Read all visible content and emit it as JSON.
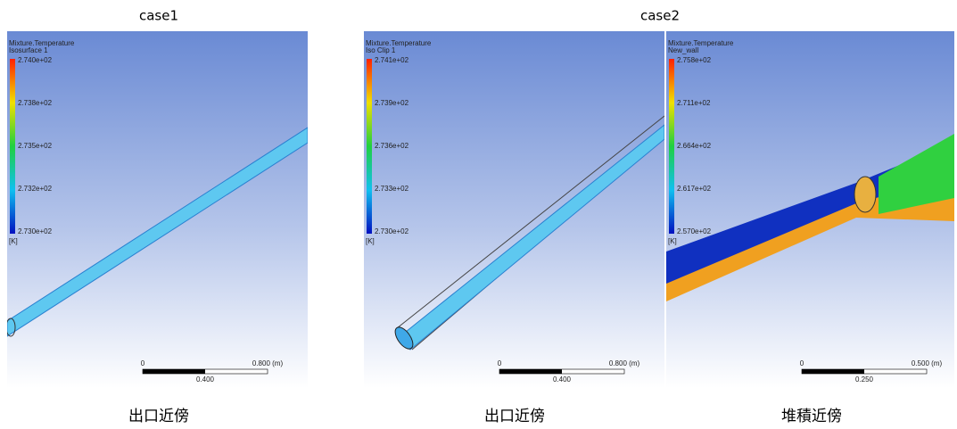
{
  "case_labels": [
    "case1",
    "case2"
  ],
  "captions": [
    "出口近傍",
    "出口近傍",
    "堆積近傍"
  ],
  "panels": [
    {
      "title": "Mixture.Temperature",
      "subtitle": "Isosurface 1",
      "legend_ticks": [
        "2.740e+02",
        "2.738e+02",
        "2.735e+02",
        "2.732e+02",
        "2.730e+02"
      ],
      "unit": "[K]",
      "scale_labels": [
        "0",
        "0.800 (m)",
        "0.400"
      ]
    },
    {
      "title": "Mixture.Temperature",
      "subtitle": "Iso Clip 1",
      "legend_ticks": [
        "2.741e+02",
        "2.739e+02",
        "2.736e+02",
        "2.733e+02",
        "2.730e+02"
      ],
      "unit": "[K]",
      "scale_labels": [
        "0",
        "0.800 (m)",
        "0.400"
      ]
    },
    {
      "title": "Mixture.Temperature",
      "subtitle": "New_wall",
      "legend_ticks": [
        "2.758e+02",
        "2.711e+02",
        "2.664e+02",
        "2.617e+02",
        "2.570e+02"
      ],
      "unit": "[K]",
      "scale_labels": [
        "0",
        "0.500 (m)",
        "0.250"
      ]
    }
  ]
}
